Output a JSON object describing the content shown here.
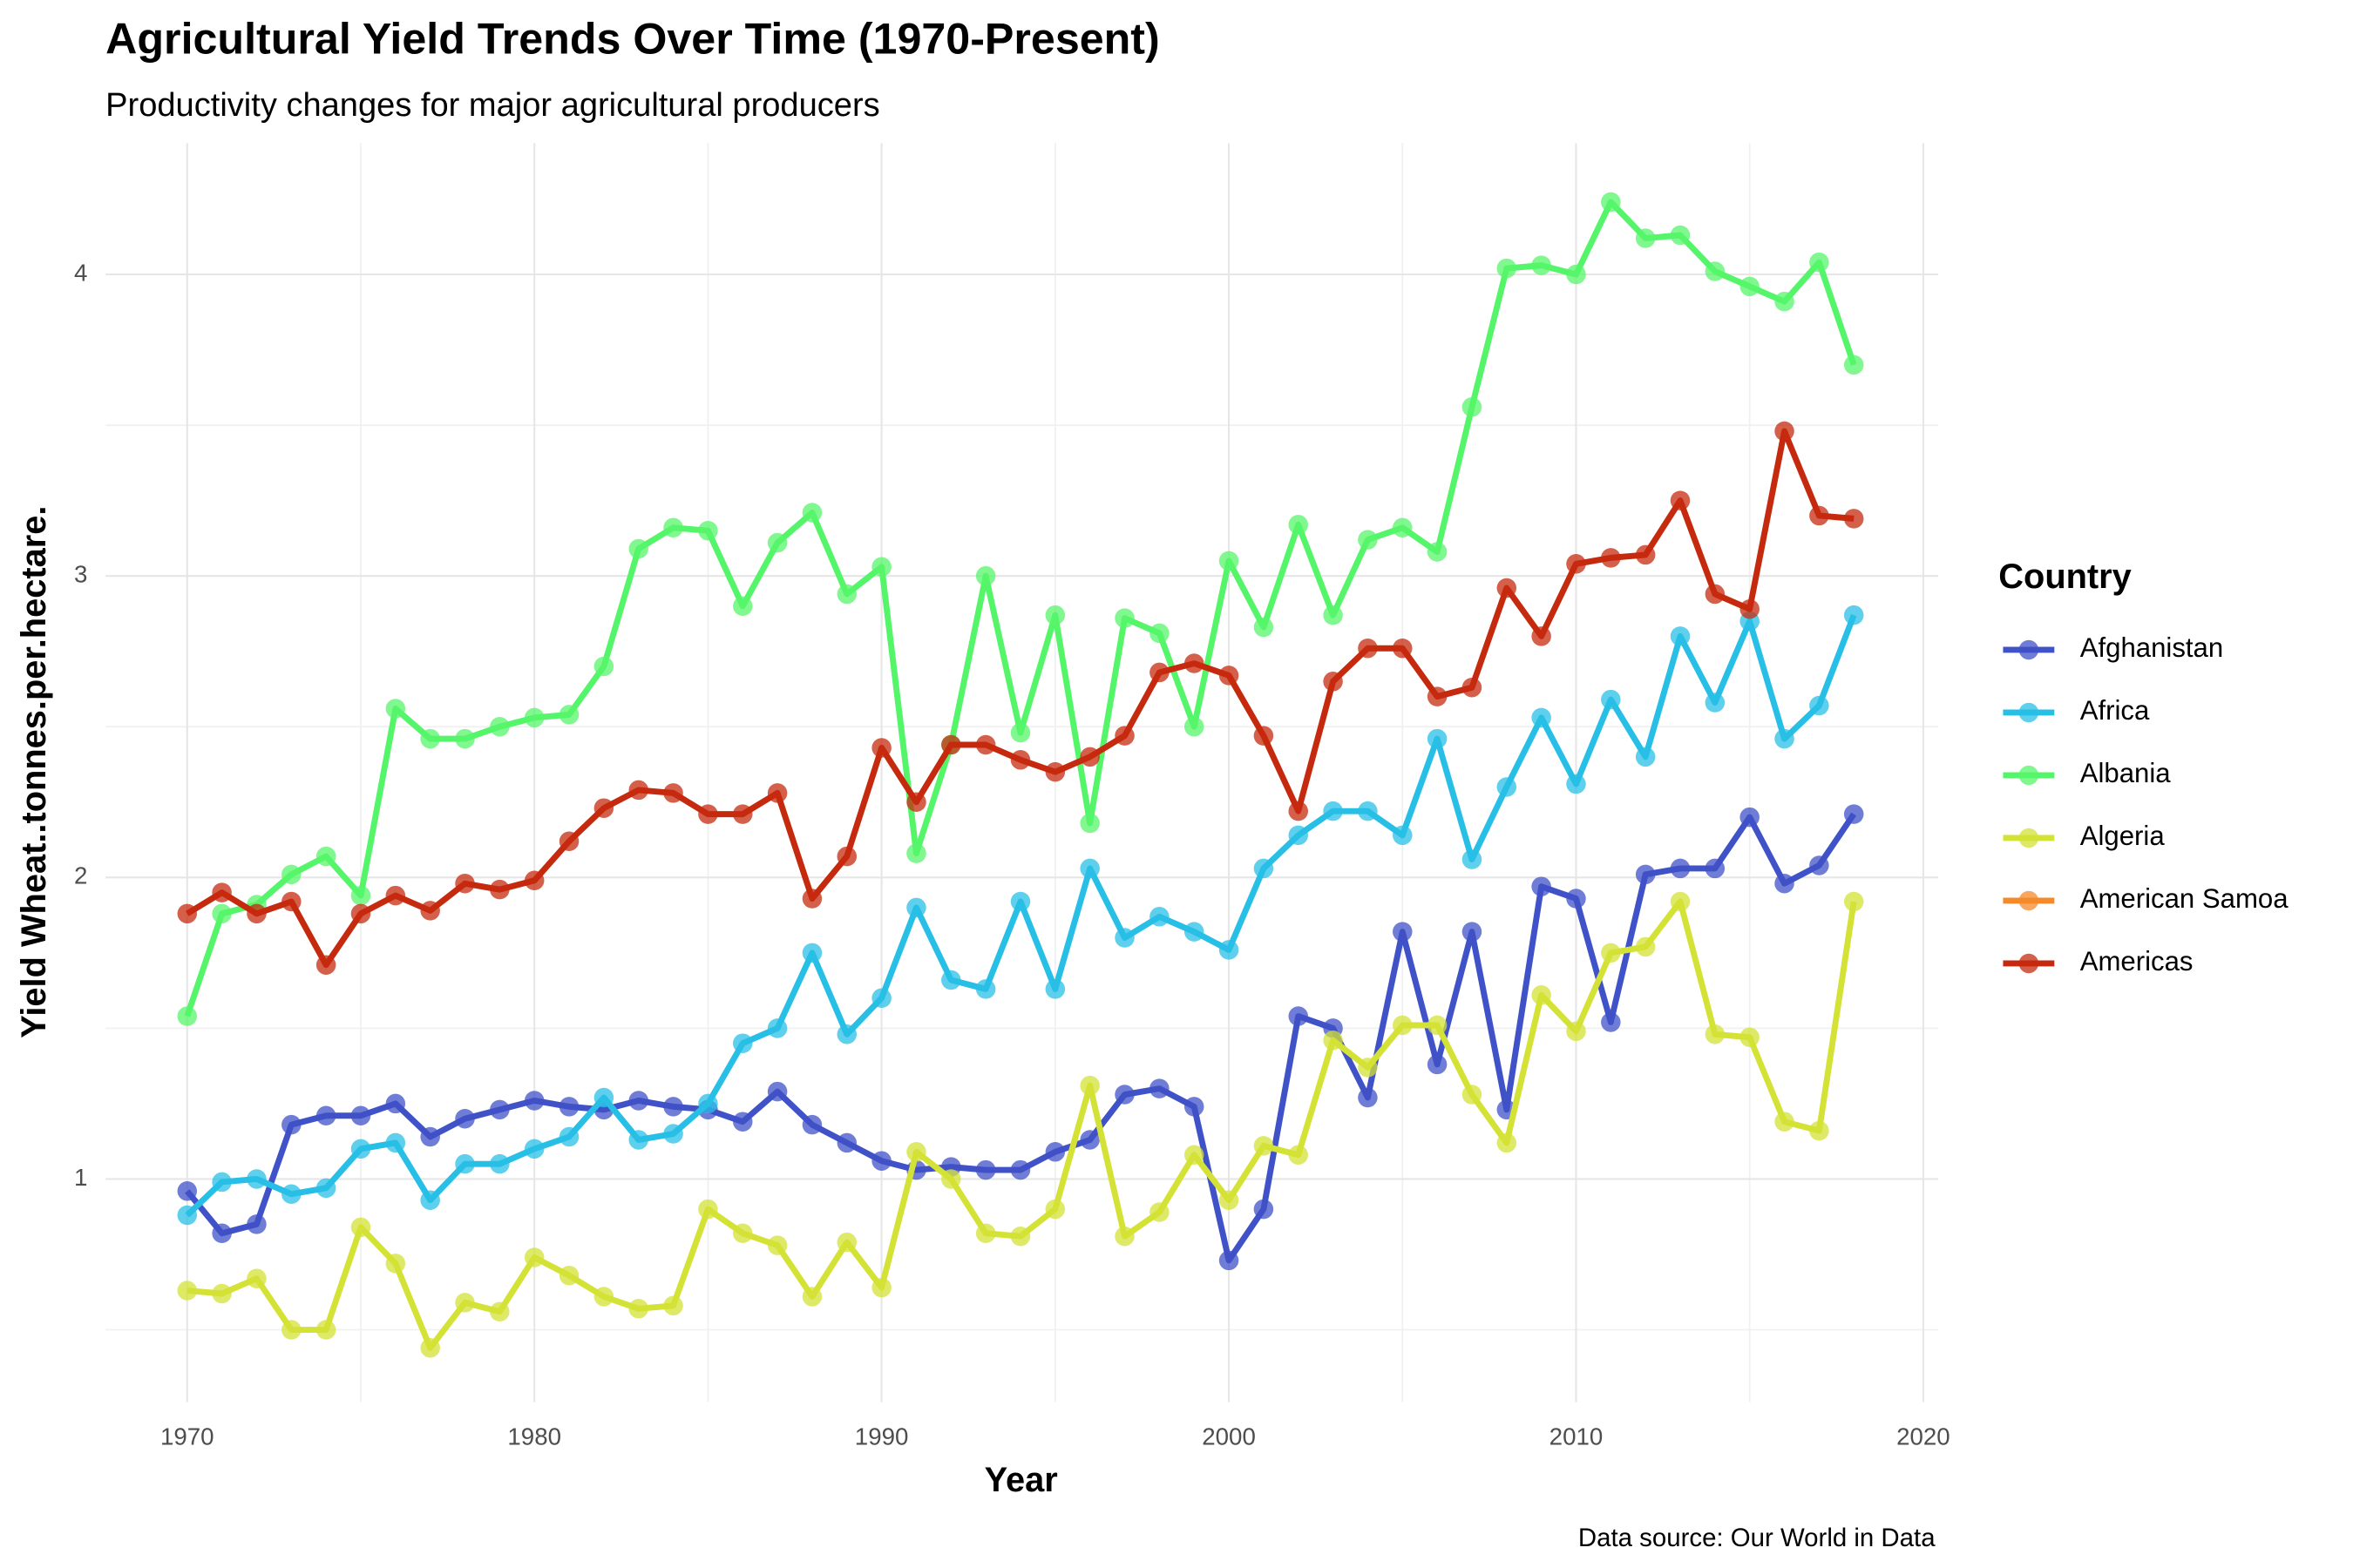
{
  "chart_data": {
    "type": "line",
    "title": "Agricultural Yield Trends Over Time (1970-Present)",
    "subtitle": "Productivity changes for major agricultural producers",
    "x_label": "Year",
    "y_label": "Yield Wheat..tonnes.per.hectare.",
    "caption": "Data source: Our World in Data",
    "legend_title": "Country",
    "legend_position": "right",
    "grid": true,
    "x": [
      1970,
      1971,
      1972,
      1973,
      1974,
      1975,
      1976,
      1977,
      1978,
      1979,
      1980,
      1981,
      1982,
      1983,
      1984,
      1985,
      1986,
      1987,
      1988,
      1989,
      1990,
      1991,
      1992,
      1993,
      1994,
      1995,
      1996,
      1997,
      1998,
      1999,
      2000,
      2001,
      2002,
      2003,
      2004,
      2005,
      2006,
      2007,
      2008,
      2009,
      2010,
      2011,
      2012,
      2013,
      2014,
      2015,
      2016,
      2017,
      2018
    ],
    "xlim": [
      1967.65,
      2020.43
    ],
    "xticks": [
      1970,
      1980,
      1990,
      2000,
      2010,
      2020
    ],
    "xminor": [
      1975,
      1985,
      1995,
      2005,
      2015
    ],
    "ylim": [
      0.26,
      4.435
    ],
    "yticks": [
      1,
      2,
      3,
      4
    ],
    "yminor": [
      0.5,
      1.5,
      2.5,
      3.5
    ],
    "series": [
      {
        "name": "Afghanistan",
        "color": "#4052c8",
        "values": [
          0.96,
          0.82,
          0.85,
          1.18,
          1.21,
          1.21,
          1.25,
          1.14,
          1.2,
          1.23,
          1.26,
          1.24,
          1.23,
          1.26,
          1.24,
          1.23,
          1.19,
          1.29,
          1.18,
          1.12,
          1.06,
          1.03,
          1.04,
          1.03,
          1.03,
          1.09,
          1.13,
          1.28,
          1.3,
          1.24,
          0.73,
          0.9,
          1.54,
          1.5,
          1.27,
          1.82,
          1.38,
          1.82,
          1.23,
          1.97,
          1.93,
          1.52,
          2.01,
          2.03,
          2.03,
          2.2,
          1.98,
          2.04,
          2.21
        ]
      },
      {
        "name": "Africa",
        "color": "#28bfe6",
        "values": [
          0.88,
          0.99,
          1.0,
          0.95,
          0.97,
          1.1,
          1.12,
          0.93,
          1.05,
          1.05,
          1.1,
          1.14,
          1.27,
          1.13,
          1.15,
          1.25,
          1.45,
          1.5,
          1.75,
          1.48,
          1.6,
          1.9,
          1.66,
          1.63,
          1.92,
          1.63,
          2.03,
          1.8,
          1.87,
          1.82,
          1.76,
          2.03,
          2.14,
          2.22,
          2.22,
          2.14,
          2.46,
          2.06,
          2.3,
          2.53,
          2.31,
          2.59,
          2.4,
          2.8,
          2.58,
          2.85,
          2.46,
          2.57,
          2.87
        ]
      },
      {
        "name": "Albania",
        "color": "#55f56a",
        "values": [
          1.54,
          1.88,
          1.91,
          2.01,
          2.07,
          1.94,
          2.56,
          2.46,
          2.46,
          2.5,
          2.53,
          2.54,
          2.7,
          3.09,
          3.16,
          3.15,
          2.9,
          3.11,
          3.21,
          2.94,
          3.03,
          2.08,
          2.44,
          3.0,
          2.48,
          2.87,
          2.18,
          2.86,
          2.81,
          2.5,
          3.05,
          2.83,
          3.17,
          2.87,
          3.12,
          3.16,
          3.08,
          3.56,
          4.02,
          4.03,
          4.0,
          4.24,
          4.12,
          4.13,
          4.01,
          3.96,
          3.91,
          4.04,
          3.7
        ]
      },
      {
        "name": "Algeria",
        "color": "#d4e236",
        "values": [
          0.63,
          0.62,
          0.67,
          0.5,
          0.5,
          0.84,
          0.72,
          0.44,
          0.59,
          0.56,
          0.74,
          0.68,
          0.61,
          0.57,
          0.58,
          0.9,
          0.82,
          0.78,
          0.61,
          0.79,
          0.64,
          1.09,
          1.0,
          0.82,
          0.81,
          0.9,
          1.31,
          0.81,
          0.89,
          1.08,
          0.93,
          1.11,
          1.08,
          1.46,
          1.37,
          1.51,
          1.51,
          1.28,
          1.12,
          1.61,
          1.49,
          1.75,
          1.77,
          1.92,
          1.48,
          1.47,
          1.19,
          1.16,
          1.92
        ]
      },
      {
        "name": "American Samoa",
        "color": "#f48a2a",
        "values": [
          null,
          null,
          null,
          null,
          null,
          null,
          null,
          null,
          null,
          null,
          null,
          null,
          null,
          null,
          null,
          null,
          null,
          null,
          null,
          null,
          null,
          null,
          null,
          null,
          null,
          null,
          null,
          null,
          null,
          null,
          null,
          null,
          null,
          null,
          null,
          null,
          null,
          null,
          null,
          null,
          null,
          null,
          null,
          null,
          null,
          null,
          null,
          null,
          null
        ]
      },
      {
        "name": "Americas",
        "color": "#c52a0e",
        "values": [
          1.88,
          1.95,
          1.88,
          1.92,
          1.71,
          1.88,
          1.94,
          1.89,
          1.98,
          1.96,
          1.99,
          2.12,
          2.23,
          2.29,
          2.28,
          2.21,
          2.21,
          2.28,
          1.93,
          2.07,
          2.43,
          2.25,
          2.44,
          2.44,
          2.39,
          2.35,
          2.4,
          2.47,
          2.68,
          2.71,
          2.67,
          2.47,
          2.22,
          2.65,
          2.76,
          2.76,
          2.6,
          2.63,
          2.96,
          2.8,
          3.04,
          3.06,
          3.07,
          3.25,
          2.94,
          2.89,
          3.48,
          3.2,
          3.19
        ]
      }
    ]
  }
}
